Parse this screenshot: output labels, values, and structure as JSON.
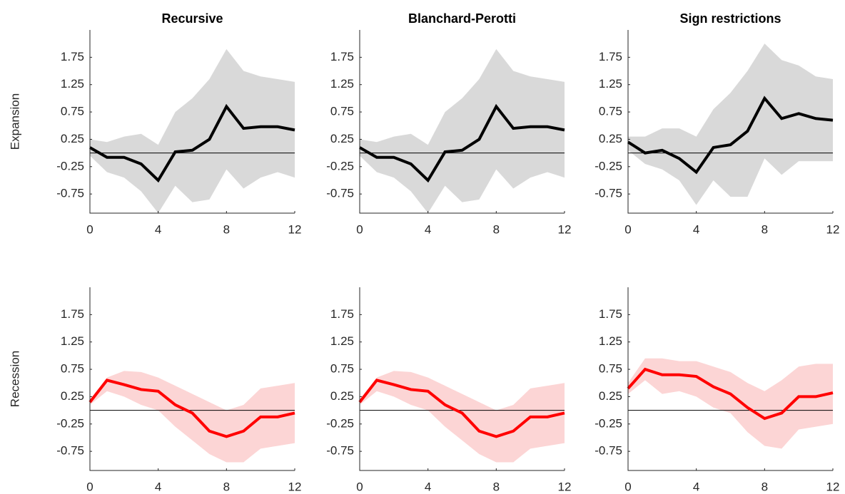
{
  "chart_data": [
    {
      "type": "line",
      "title": "Recursive",
      "ylabel": "Expansion",
      "x": [
        0,
        1,
        2,
        3,
        4,
        5,
        6,
        7,
        8,
        9,
        10,
        11,
        12
      ],
      "xlim": [
        0,
        12
      ],
      "xticks": [
        0,
        4,
        8,
        12
      ],
      "ylim": [
        -1.1,
        2.25
      ],
      "yticks": [
        -0.75,
        -0.25,
        0.25,
        0.75,
        1.25,
        1.75
      ],
      "hline": 0,
      "band": {
        "color": "#d9d9d9",
        "upper": [
          0.25,
          0.2,
          0.3,
          0.35,
          0.15,
          0.75,
          1.0,
          1.35,
          1.9,
          1.5,
          1.4,
          1.35,
          1.3
        ],
        "lower": [
          -0.05,
          -0.35,
          -0.45,
          -0.7,
          -1.1,
          -0.6,
          -0.9,
          -0.85,
          -0.3,
          -0.65,
          -0.45,
          -0.35,
          -0.45
        ]
      },
      "series": [
        {
          "color": "#000000",
          "values": [
            0.1,
            -0.08,
            -0.08,
            -0.2,
            -0.5,
            0.02,
            0.05,
            0.25,
            0.85,
            0.45,
            0.48,
            0.48,
            0.42
          ]
        }
      ]
    },
    {
      "type": "line",
      "title": "Blanchard-Perotti",
      "x": [
        0,
        1,
        2,
        3,
        4,
        5,
        6,
        7,
        8,
        9,
        10,
        11,
        12
      ],
      "xlim": [
        0,
        12
      ],
      "xticks": [
        0,
        4,
        8,
        12
      ],
      "ylim": [
        -1.1,
        2.25
      ],
      "yticks": [
        -0.75,
        -0.25,
        0.25,
        0.75,
        1.25,
        1.75
      ],
      "hline": 0,
      "band": {
        "color": "#d9d9d9",
        "upper": [
          0.25,
          0.2,
          0.3,
          0.35,
          0.15,
          0.75,
          1.0,
          1.35,
          1.9,
          1.5,
          1.4,
          1.35,
          1.3
        ],
        "lower": [
          -0.05,
          -0.35,
          -0.45,
          -0.7,
          -1.1,
          -0.6,
          -0.9,
          -0.85,
          -0.3,
          -0.65,
          -0.45,
          -0.35,
          -0.45
        ]
      },
      "series": [
        {
          "color": "#000000",
          "values": [
            0.1,
            -0.08,
            -0.08,
            -0.2,
            -0.5,
            0.02,
            0.05,
            0.25,
            0.85,
            0.45,
            0.48,
            0.48,
            0.42
          ]
        }
      ]
    },
    {
      "type": "line",
      "title": "Sign restrictions",
      "x": [
        0,
        1,
        2,
        3,
        4,
        5,
        6,
        7,
        8,
        9,
        10,
        11,
        12
      ],
      "xlim": [
        0,
        12
      ],
      "xticks": [
        0,
        4,
        8,
        12
      ],
      "ylim": [
        -1.1,
        2.25
      ],
      "yticks": [
        -0.75,
        -0.25,
        0.25,
        0.75,
        1.25,
        1.75
      ],
      "hline": 0,
      "band": {
        "color": "#d9d9d9",
        "upper": [
          0.3,
          0.3,
          0.45,
          0.45,
          0.3,
          0.8,
          1.1,
          1.5,
          2.0,
          1.7,
          1.6,
          1.4,
          1.35
        ],
        "lower": [
          0.05,
          -0.2,
          -0.3,
          -0.5,
          -0.95,
          -0.5,
          -0.8,
          -0.8,
          -0.1,
          -0.4,
          -0.15,
          -0.15,
          -0.15
        ]
      },
      "series": [
        {
          "color": "#000000",
          "values": [
            0.2,
            0.0,
            0.05,
            -0.1,
            -0.35,
            0.1,
            0.15,
            0.4,
            1.0,
            0.63,
            0.72,
            0.63,
            0.6
          ]
        }
      ]
    },
    {
      "type": "line",
      "ylabel": "Recession",
      "x": [
        0,
        1,
        2,
        3,
        4,
        5,
        6,
        7,
        8,
        9,
        10,
        11,
        12
      ],
      "xlim": [
        0,
        12
      ],
      "xticks": [
        0,
        4,
        8,
        12
      ],
      "ylim": [
        -1.1,
        2.25
      ],
      "yticks": [
        -0.75,
        -0.25,
        0.25,
        0.75,
        1.25,
        1.75
      ],
      "hline": 0,
      "band": {
        "color": "#fcd5d5",
        "upper": [
          0.2,
          0.6,
          0.72,
          0.7,
          0.6,
          0.45,
          0.3,
          0.15,
          0.0,
          0.1,
          0.4,
          0.45,
          0.5
        ],
        "lower": [
          0.1,
          0.35,
          0.25,
          0.1,
          0.0,
          -0.3,
          -0.55,
          -0.8,
          -0.95,
          -0.95,
          -0.7,
          -0.65,
          -0.6
        ]
      },
      "series": [
        {
          "color": "#ff0000",
          "values": [
            0.15,
            0.55,
            0.47,
            0.38,
            0.35,
            0.1,
            -0.05,
            -0.38,
            -0.48,
            -0.38,
            -0.12,
            -0.12,
            -0.05
          ]
        }
      ]
    },
    {
      "type": "line",
      "x": [
        0,
        1,
        2,
        3,
        4,
        5,
        6,
        7,
        8,
        9,
        10,
        11,
        12
      ],
      "xlim": [
        0,
        12
      ],
      "xticks": [
        0,
        4,
        8,
        12
      ],
      "ylim": [
        -1.1,
        2.25
      ],
      "yticks": [
        -0.75,
        -0.25,
        0.25,
        0.75,
        1.25,
        1.75
      ],
      "hline": 0,
      "band": {
        "color": "#fcd5d5",
        "upper": [
          0.2,
          0.6,
          0.72,
          0.7,
          0.6,
          0.45,
          0.3,
          0.15,
          0.0,
          0.1,
          0.4,
          0.45,
          0.5
        ],
        "lower": [
          0.1,
          0.35,
          0.25,
          0.1,
          0.0,
          -0.3,
          -0.55,
          -0.8,
          -0.95,
          -0.95,
          -0.7,
          -0.65,
          -0.6
        ]
      },
      "series": [
        {
          "color": "#ff0000",
          "values": [
            0.15,
            0.55,
            0.47,
            0.38,
            0.35,
            0.1,
            -0.05,
            -0.38,
            -0.48,
            -0.38,
            -0.12,
            -0.12,
            -0.05
          ]
        }
      ]
    },
    {
      "type": "line",
      "x": [
        0,
        1,
        2,
        3,
        4,
        5,
        6,
        7,
        8,
        9,
        10,
        11,
        12
      ],
      "xlim": [
        0,
        12
      ],
      "xticks": [
        0,
        4,
        8,
        12
      ],
      "ylim": [
        -1.1,
        2.25
      ],
      "yticks": [
        -0.75,
        -0.25,
        0.25,
        0.75,
        1.25,
        1.75
      ],
      "hline": 0,
      "band": {
        "color": "#fcd5d5",
        "upper": [
          0.5,
          0.95,
          0.95,
          0.9,
          0.9,
          0.8,
          0.7,
          0.5,
          0.35,
          0.55,
          0.8,
          0.85,
          0.85
        ],
        "lower": [
          0.3,
          0.55,
          0.3,
          0.35,
          0.25,
          0.05,
          -0.05,
          -0.4,
          -0.65,
          -0.7,
          -0.35,
          -0.3,
          -0.25
        ]
      },
      "series": [
        {
          "color": "#ff0000",
          "values": [
            0.4,
            0.75,
            0.65,
            0.65,
            0.62,
            0.43,
            0.3,
            0.05,
            -0.15,
            -0.05,
            0.25,
            0.25,
            0.32
          ]
        }
      ]
    }
  ]
}
